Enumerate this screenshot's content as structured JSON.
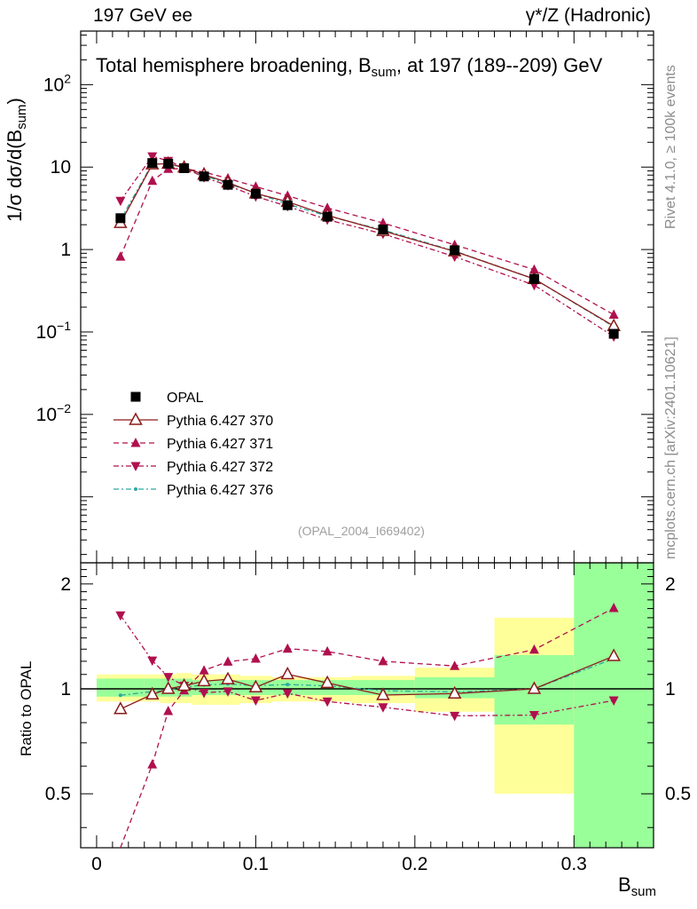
{
  "header": {
    "left": "197 GeV ee",
    "right": "γ*/Z (Hadronic)"
  },
  "chart_data": {
    "type": "line",
    "title": "Total hemisphere broadening, B_sum, at 197 (189--209) GeV",
    "title_main": "Total hemisphere broadening, B",
    "title_sub": "sum",
    "title_tail": ", at 197 (189--209) GeV",
    "xlabel_main": "B",
    "xlabel_sub": "sum",
    "ylabel_main": "1/σ   dσ/d(B",
    "ylabel_sub": "sum",
    "ylabel_tail": ")",
    "ratio_ylabel": "Ratio to OPAL",
    "reference_id": "(OPAL_2004_I669402)",
    "side_label_top": "Rivet 4.1.0, ≥ 100k events",
    "side_label_bottom": "mcplots.cern.ch [arXiv:2401.10621]",
    "xlim": [
      -0.01,
      0.35
    ],
    "ylim_main_log10": [
      -3.8,
      2.65
    ],
    "ylim_ratio": [
      0.35,
      2.3
    ],
    "x_ticks": [
      "0",
      "0.1",
      "0.2",
      "0.3"
    ],
    "x_tick_values": [
      0,
      0.1,
      0.2,
      0.3
    ],
    "y_ticks_main": [
      {
        "base": "10",
        "exp": "2",
        "value": 100
      },
      {
        "base": "10",
        "exp": "",
        "value": 10
      },
      {
        "base": "1",
        "exp": "",
        "value": 1
      },
      {
        "base": "10",
        "exp": "−1",
        "value": 0.1
      },
      {
        "base": "10",
        "exp": "−2",
        "value": 0.01
      }
    ],
    "y_ticks_ratio": [
      "0.5",
      "1",
      "2"
    ],
    "y_tick_values_ratio": [
      0.5,
      1,
      2
    ],
    "bin_edges": [
      0.0,
      0.03,
      0.04,
      0.05,
      0.06,
      0.075,
      0.09,
      0.11,
      0.13,
      0.16,
      0.2,
      0.25,
      0.3,
      0.35
    ],
    "x": [
      0.015,
      0.035,
      0.045,
      0.055,
      0.0675,
      0.0825,
      0.1,
      0.12,
      0.145,
      0.18,
      0.225,
      0.275,
      0.325
    ],
    "band_green": [
      [
        0.95,
        1.07
      ],
      [
        0.95,
        1.07
      ],
      [
        0.95,
        1.07
      ],
      [
        0.95,
        1.07
      ],
      [
        0.96,
        1.06
      ],
      [
        0.96,
        1.06
      ],
      [
        0.96,
        1.06
      ],
      [
        0.96,
        1.06
      ],
      [
        0.96,
        1.06
      ],
      [
        0.96,
        1.06
      ],
      [
        0.94,
        1.08
      ],
      [
        0.79,
        1.25
      ],
      [
        0.35,
        2.3
      ]
    ],
    "band_yellow": [
      [
        0.92,
        1.1
      ],
      [
        0.92,
        1.1
      ],
      [
        0.91,
        1.1
      ],
      [
        0.91,
        1.11
      ],
      [
        0.9,
        1.1
      ],
      [
        0.9,
        1.1
      ],
      [
        0.91,
        1.09
      ],
      [
        0.92,
        1.08
      ],
      [
        0.92,
        1.08
      ],
      [
        0.91,
        1.09
      ],
      [
        0.86,
        1.15
      ],
      [
        0.5,
        1.6
      ],
      [
        0.35,
        2.3
      ]
    ],
    "series": [
      {
        "name": "OPAL",
        "color": "#000000",
        "marker": "square",
        "values": [
          2.4,
          11.2,
          11.0,
          9.7,
          7.7,
          6.1,
          4.75,
          3.45,
          2.5,
          1.75,
          0.98,
          0.44,
          0.095
        ]
      },
      {
        "name": "Pythia 6.427 370",
        "color": "#8b1a1a",
        "marker": "triangle-up-open",
        "dash": "",
        "values": [
          2.1,
          10.8,
          11.0,
          9.9,
          8.1,
          6.5,
          4.8,
          3.8,
          2.6,
          1.68,
          0.95,
          0.44,
          0.118
        ]
      },
      {
        "name": "Pythia 6.427 371",
        "color": "#b0104e",
        "marker": "triangle-up-filled",
        "dash": "6,4",
        "values": [
          0.82,
          6.8,
          9.5,
          9.6,
          8.7,
          7.3,
          5.8,
          4.5,
          3.2,
          2.1,
          1.14,
          0.57,
          0.162
        ]
      },
      {
        "name": "Pythia 6.427 372",
        "color": "#b0104e",
        "marker": "triangle-down-filled",
        "dash": "6,3,2,3",
        "values": [
          3.9,
          13.5,
          11.9,
          9.9,
          7.5,
          6.0,
          4.4,
          3.35,
          2.3,
          1.55,
          0.82,
          0.37,
          0.088
        ]
      },
      {
        "name": "Pythia 6.427 376",
        "color": "#2ea8a0",
        "marker": "dot",
        "dash": "6,3,2,3",
        "values": [
          2.3,
          11.0,
          10.9,
          9.8,
          7.9,
          6.3,
          4.85,
          3.55,
          2.55,
          1.73,
          0.96,
          0.44,
          0.116
        ]
      }
    ]
  }
}
